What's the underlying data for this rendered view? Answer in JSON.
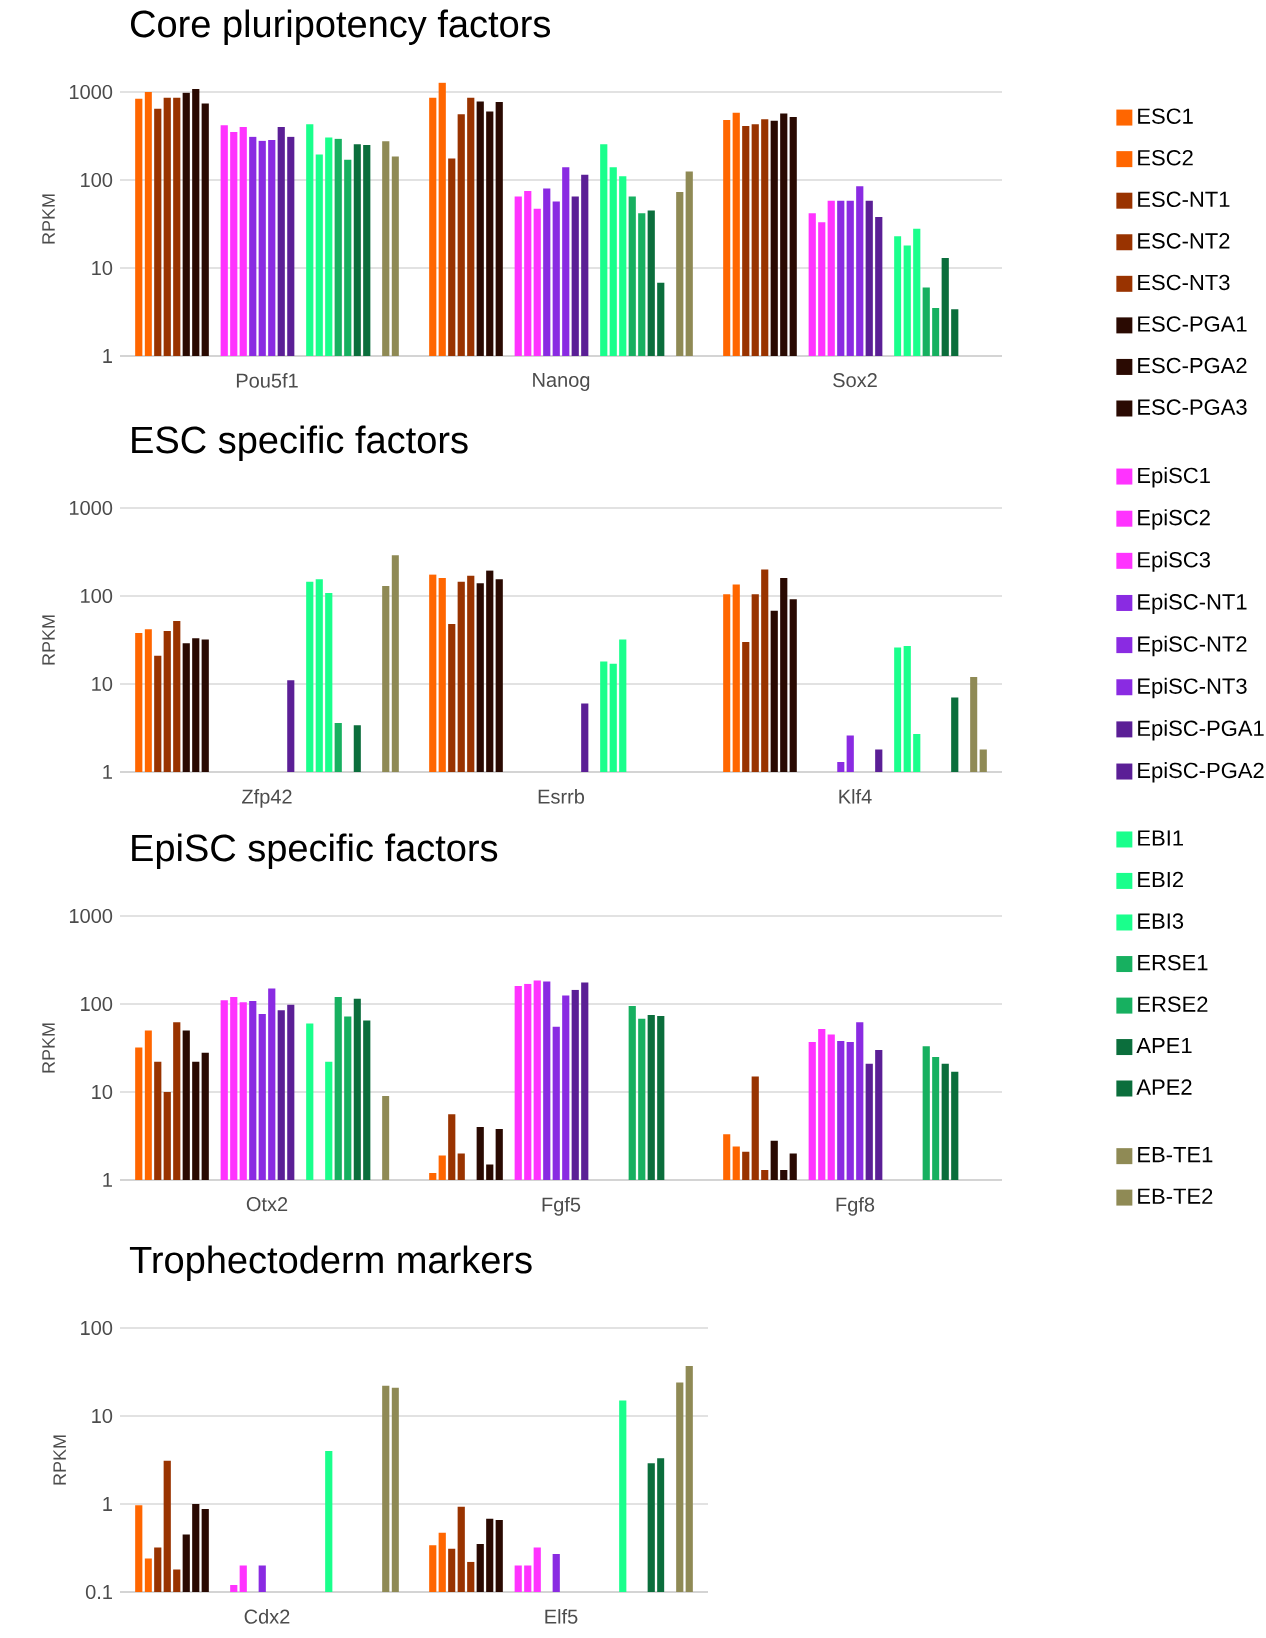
{
  "chart_data": [
    {
      "type": "bar",
      "title": "Core pluripotency factors",
      "ylabel": "RPKM",
      "categories": [
        "Pou5f1",
        "Nanog",
        "Sox2"
      ],
      "log": true,
      "grid": "y",
      "legend": "right",
      "ylim": [
        1,
        1300
      ],
      "yticks": [
        1,
        10,
        100,
        1000
      ],
      "series": [
        {
          "name": "ESC1",
          "color": "#ff6600",
          "values": [
            840,
            860,
            480
          ]
        },
        {
          "name": "ESC2",
          "color": "#ff6600",
          "values": [
            1000,
            1270,
            580
          ]
        },
        {
          "name": "ESC-NT1",
          "color": "#993300",
          "values": [
            650,
            175,
            410
          ]
        },
        {
          "name": "ESC-NT2",
          "color": "#993300",
          "values": [
            860,
            560,
            430
          ]
        },
        {
          "name": "ESC-NT3",
          "color": "#993300",
          "values": [
            860,
            860,
            490
          ]
        },
        {
          "name": "ESC-PGA1",
          "color": "#2a0a02",
          "values": [
            980,
            780,
            470
          ]
        },
        {
          "name": "ESC-PGA2",
          "color": "#2a0a02",
          "values": [
            1080,
            600,
            570
          ]
        },
        {
          "name": "ESC-PGA3",
          "color": "#2a0a02",
          "values": [
            740,
            770,
            520
          ]
        },
        {
          "name": "EpiSC1",
          "color": "#ff33ff",
          "values": [
            420,
            65,
            42
          ]
        },
        {
          "name": "EpiSC2",
          "color": "#ff33ff",
          "values": [
            350,
            75,
            33
          ]
        },
        {
          "name": "EpiSC3",
          "color": "#ff33ff",
          "values": [
            400,
            47,
            58
          ]
        },
        {
          "name": "EpiSC-NT1",
          "color": "#8a2be2",
          "values": [
            310,
            80,
            58
          ]
        },
        {
          "name": "EpiSC-NT2",
          "color": "#8a2be2",
          "values": [
            280,
            57,
            58
          ]
        },
        {
          "name": "EpiSC-NT3",
          "color": "#8a2be2",
          "values": [
            285,
            140,
            85
          ]
        },
        {
          "name": "EpiSC-PGA1",
          "color": "#5b1f96",
          "values": [
            400,
            65,
            58
          ]
        },
        {
          "name": "EpiSC-PGA2",
          "color": "#5b1f96",
          "values": [
            310,
            115,
            38
          ]
        },
        {
          "name": "EBI1",
          "color": "#1aff8c",
          "values": [
            430,
            255,
            23
          ]
        },
        {
          "name": "EBI2",
          "color": "#1aff8c",
          "values": [
            195,
            140,
            18
          ]
        },
        {
          "name": "EBI3",
          "color": "#1aff8c",
          "values": [
            305,
            110,
            28
          ]
        },
        {
          "name": "ERSE1",
          "color": "#17b060",
          "values": [
            295,
            65,
            6
          ]
        },
        {
          "name": "ERSE2",
          "color": "#17b060",
          "values": [
            170,
            42,
            3.5
          ]
        },
        {
          "name": "APE1",
          "color": "#0b6e3c",
          "values": [
            255,
            45,
            13
          ]
        },
        {
          "name": "APE2",
          "color": "#0b6e3c",
          "values": [
            250,
            6.8,
            3.4
          ]
        },
        {
          "name": "EB-TE1",
          "color": "#8f8a55",
          "values": [
            275,
            73,
            null
          ]
        },
        {
          "name": "EB-TE2",
          "color": "#8f8a55",
          "values": [
            185,
            125,
            null
          ]
        }
      ]
    },
    {
      "type": "bar",
      "title": "ESC specific factors",
      "ylabel": "RPKM",
      "categories": [
        "Zfp42",
        "Esrrb",
        "Klf4"
      ],
      "log": true,
      "grid": "y",
      "ylim": [
        1,
        1000
      ],
      "yticks": [
        1,
        10,
        100,
        1000
      ],
      "series": [
        {
          "color": "#ff6600",
          "values": [
            38,
            175,
            105
          ]
        },
        {
          "color": "#ff6600",
          "values": [
            42,
            160,
            135
          ]
        },
        {
          "color": "#993300",
          "values": [
            21,
            48,
            30
          ]
        },
        {
          "color": "#993300",
          "values": [
            40,
            145,
            105
          ]
        },
        {
          "color": "#993300",
          "values": [
            52,
            170,
            200
          ]
        },
        {
          "color": "#2a0a02",
          "values": [
            29,
            140,
            68
          ]
        },
        {
          "color": "#2a0a02",
          "values": [
            33,
            195,
            160
          ]
        },
        {
          "color": "#2a0a02",
          "values": [
            32,
            155,
            92
          ]
        },
        {
          "color": "#ff33ff",
          "values": [
            null,
            null,
            null
          ]
        },
        {
          "color": "#ff33ff",
          "values": [
            null,
            null,
            null
          ]
        },
        {
          "color": "#ff33ff",
          "values": [
            null,
            null,
            null
          ]
        },
        {
          "color": "#8a2be2",
          "values": [
            null,
            null,
            1.3
          ]
        },
        {
          "color": "#8a2be2",
          "values": [
            null,
            null,
            2.6
          ]
        },
        {
          "color": "#8a2be2",
          "values": [
            null,
            null,
            null
          ]
        },
        {
          "color": "#5b1f96",
          "values": [
            null,
            null,
            null
          ]
        },
        {
          "color": "#5b1f96",
          "values": [
            11,
            6,
            1.8
          ]
        },
        {
          "color": "#1aff8c",
          "values": [
            145,
            18,
            26
          ]
        },
        {
          "color": "#1aff8c",
          "values": [
            155,
            17,
            27
          ]
        },
        {
          "color": "#1aff8c",
          "values": [
            108,
            32,
            2.7
          ]
        },
        {
          "color": "#17b060",
          "values": [
            3.6,
            null,
            null
          ]
        },
        {
          "color": "#17b060",
          "values": [
            null,
            null,
            null
          ]
        },
        {
          "color": "#0b6e3c",
          "values": [
            3.4,
            null,
            null
          ]
        },
        {
          "color": "#0b6e3c",
          "values": [
            null,
            null,
            7
          ]
        },
        {
          "color": "#8f8a55",
          "values": [
            130,
            null,
            12
          ]
        },
        {
          "color": "#8f8a55",
          "values": [
            290,
            null,
            1.8
          ]
        }
      ]
    },
    {
      "type": "bar",
      "title": "EpiSC specific factors",
      "ylabel": "RPKM",
      "categories": [
        "Otx2",
        "Fgf5",
        "Fgf8"
      ],
      "log": true,
      "grid": "y",
      "ylim": [
        1,
        1000
      ],
      "yticks": [
        1,
        10,
        100,
        1000
      ],
      "series": [
        {
          "color": "#ff6600",
          "values": [
            32,
            1.2,
            3.3
          ]
        },
        {
          "color": "#ff6600",
          "values": [
            50,
            1.9,
            2.4
          ]
        },
        {
          "color": "#993300",
          "values": [
            22,
            5.6,
            2.1
          ]
        },
        {
          "color": "#993300",
          "values": [
            10,
            2.0,
            15
          ]
        },
        {
          "color": "#993300",
          "values": [
            62,
            null,
            1.3
          ]
        },
        {
          "color": "#2a0a02",
          "values": [
            50,
            4.0,
            2.8
          ]
        },
        {
          "color": "#2a0a02",
          "values": [
            22,
            1.5,
            1.3
          ]
        },
        {
          "color": "#2a0a02",
          "values": [
            28,
            3.8,
            2.0
          ]
        },
        {
          "color": "#ff33ff",
          "values": [
            110,
            160,
            37
          ]
        },
        {
          "color": "#ff33ff",
          "values": [
            120,
            170,
            52
          ]
        },
        {
          "color": "#ff33ff",
          "values": [
            105,
            185,
            45
          ]
        },
        {
          "color": "#8a2be2",
          "values": [
            108,
            180,
            38
          ]
        },
        {
          "color": "#8a2be2",
          "values": [
            77,
            55,
            37
          ]
        },
        {
          "color": "#8a2be2",
          "values": [
            150,
            125,
            62
          ]
        },
        {
          "color": "#5b1f96",
          "values": [
            85,
            145,
            21
          ]
        },
        {
          "color": "#5b1f96",
          "values": [
            98,
            175,
            30
          ]
        },
        {
          "color": "#1aff8c",
          "values": [
            60,
            null,
            null
          ]
        },
        {
          "color": "#1aff8c",
          "values": [
            null,
            null,
            null
          ]
        },
        {
          "color": "#1aff8c",
          "values": [
            22,
            null,
            null
          ]
        },
        {
          "color": "#17b060",
          "values": [
            120,
            95,
            33
          ]
        },
        {
          "color": "#17b060",
          "values": [
            72,
            68,
            25
          ]
        },
        {
          "color": "#0b6e3c",
          "values": [
            115,
            75,
            21
          ]
        },
        {
          "color": "#0b6e3c",
          "values": [
            65,
            73,
            17
          ]
        },
        {
          "color": "#8f8a55",
          "values": [
            9,
            null,
            null
          ]
        },
        {
          "color": "#8f8a55",
          "values": [
            null,
            null,
            null
          ]
        }
      ]
    },
    {
      "type": "bar",
      "title": "Trophectoderm markers",
      "ylabel": "RPKM",
      "categories": [
        "Cdx2",
        "Elf5"
      ],
      "log": true,
      "grid": "y",
      "ylim": [
        0.1,
        100
      ],
      "yticks": [
        0.1,
        1,
        10,
        100
      ],
      "series": [
        {
          "color": "#ff6600",
          "values": [
            0.97,
            0.34
          ]
        },
        {
          "color": "#ff6600",
          "values": [
            0.24,
            0.47
          ]
        },
        {
          "color": "#993300",
          "values": [
            0.32,
            0.31
          ]
        },
        {
          "color": "#993300",
          "values": [
            3.1,
            0.93
          ]
        },
        {
          "color": "#993300",
          "values": [
            0.18,
            0.22
          ]
        },
        {
          "color": "#2a0a02",
          "values": [
            0.45,
            0.35
          ]
        },
        {
          "color": "#2a0a02",
          "values": [
            1.0,
            0.68
          ]
        },
        {
          "color": "#2a0a02",
          "values": [
            0.88,
            0.66
          ]
        },
        {
          "color": "#ff33ff",
          "values": [
            null,
            0.2
          ]
        },
        {
          "color": "#ff33ff",
          "values": [
            0.12,
            0.2
          ]
        },
        {
          "color": "#ff33ff",
          "values": [
            0.2,
            0.32
          ]
        },
        {
          "color": "#8a2be2",
          "values": [
            null,
            null
          ]
        },
        {
          "color": "#8a2be2",
          "values": [
            0.2,
            0.27
          ]
        },
        {
          "color": "#8a2be2",
          "values": [
            null,
            null
          ]
        },
        {
          "color": "#5b1f96",
          "values": [
            null,
            null
          ]
        },
        {
          "color": "#5b1f96",
          "values": [
            null,
            null
          ]
        },
        {
          "color": "#1aff8c",
          "values": [
            null,
            null
          ]
        },
        {
          "color": "#1aff8c",
          "values": [
            null,
            null
          ]
        },
        {
          "color": "#1aff8c",
          "values": [
            4.0,
            15
          ]
        },
        {
          "color": "#17b060",
          "values": [
            null,
            null
          ]
        },
        {
          "color": "#17b060",
          "values": [
            null,
            null
          ]
        },
        {
          "color": "#0b6e3c",
          "values": [
            null,
            2.9
          ]
        },
        {
          "color": "#0b6e3c",
          "values": [
            null,
            3.3
          ]
        },
        {
          "color": "#8f8a55",
          "values": [
            22,
            24
          ]
        },
        {
          "color": "#8f8a55",
          "values": [
            21,
            37
          ]
        }
      ]
    }
  ]
}
